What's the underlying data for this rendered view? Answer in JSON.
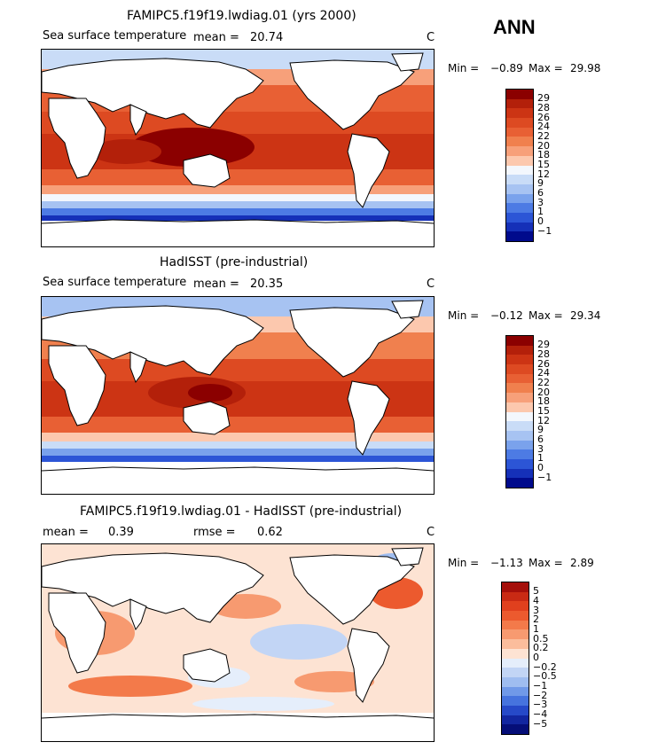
{
  "season": "ANN",
  "panels": [
    {
      "title": "FAMIPC5.f19f19.lwdiag.01 (yrs 2000)",
      "field": "Sea surface temperature",
      "stat_label": "mean =",
      "stat_value": "20.74",
      "units": "C",
      "min_label": "Min =",
      "min_value": "−0.89",
      "max_label": "Max =",
      "max_value": "29.98"
    },
    {
      "title": "HadISST (pre-industrial)",
      "field": "Sea surface temperature",
      "stat_label": "mean =",
      "stat_value": "20.35",
      "units": "C",
      "min_label": "Min =",
      "min_value": "−0.12",
      "max_label": "Max =",
      "max_value": "29.34"
    },
    {
      "title": "FAMIPC5.f19f19.lwdiag.01 - HadISST (pre-industrial)",
      "stat_label": "mean =",
      "stat_value": "0.39",
      "rmse_label": "rmse =",
      "rmse_value": "0.62",
      "units": "C",
      "min_label": "Min =",
      "min_value": "−1.13",
      "max_label": "Max =",
      "max_value": "2.89"
    }
  ],
  "chart_data": [
    {
      "type": "heatmap",
      "title": "FAMIPC5.f19f19.lwdiag.01 (yrs 2000)",
      "variable": "Sea surface temperature",
      "units": "C",
      "mean": 20.74,
      "min": -0.89,
      "max": 29.98,
      "colorbar": {
        "levels": [
          "29",
          "28",
          "26",
          "24",
          "22",
          "20",
          "18",
          "15",
          "12",
          "9",
          "6",
          "3",
          "1",
          "0",
          "−1"
        ],
        "colors": [
          "#8b0000",
          "#b3200a",
          "#cc3414",
          "#dd4a22",
          "#e86034",
          "#f0804e",
          "#f7a07a",
          "#fcc8ae",
          "#f3f7fd",
          "#c9dcf7",
          "#a7c3f2",
          "#7aa2ec",
          "#4d7be4",
          "#2c55d6",
          "#1530b8",
          "#000a8c"
        ]
      }
    },
    {
      "type": "heatmap",
      "title": "HadISST (pre-industrial)",
      "variable": "Sea surface temperature",
      "units": "C",
      "mean": 20.35,
      "min": -0.12,
      "max": 29.34,
      "colorbar": {
        "levels": [
          "29",
          "28",
          "26",
          "24",
          "22",
          "20",
          "18",
          "15",
          "12",
          "9",
          "6",
          "3",
          "1",
          "0",
          "−1"
        ],
        "colors": [
          "#8b0000",
          "#b3200a",
          "#cc3414",
          "#dd4a22",
          "#e86034",
          "#f0804e",
          "#f7a07a",
          "#fcc8ae",
          "#f3f7fd",
          "#c9dcf7",
          "#a7c3f2",
          "#7aa2ec",
          "#4d7be4",
          "#2c55d6",
          "#1530b8",
          "#000a8c"
        ]
      }
    },
    {
      "type": "heatmap",
      "title": "FAMIPC5.f19f19.lwdiag.01 - HadISST (pre-industrial)",
      "units": "C",
      "mean": 0.39,
      "rmse": 0.62,
      "min": -1.13,
      "max": 2.89,
      "colorbar": {
        "levels": [
          "5",
          "4",
          "3",
          "2",
          "1",
          "0.5",
          "0.2",
          "0",
          "−0.2",
          "−0.5",
          "−1",
          "−2",
          "−3",
          "−4",
          "−5"
        ],
        "colors": [
          "#a50f0a",
          "#c92a14",
          "#e0401e",
          "#ec5a2e",
          "#f37a4a",
          "#f79a70",
          "#fbbd9c",
          "#fde3d3",
          "#e5eefb",
          "#c2d5f5",
          "#9fbdf0",
          "#7099e8",
          "#4673de",
          "#2649c8",
          "#1226a0",
          "#050e78"
        ]
      }
    }
  ]
}
